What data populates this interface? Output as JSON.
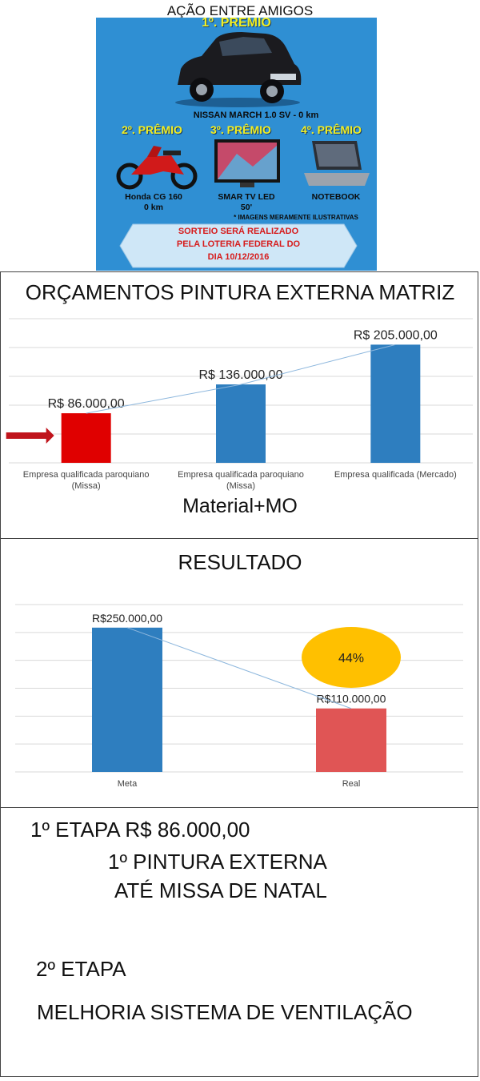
{
  "poster": {
    "title": "AÇÃO ENTRE AMIGOS",
    "first_prize": {
      "label": "1º. PREMIO",
      "item": "NISSAN MARCH 1.0 SV - 0 km"
    },
    "second_prize": {
      "label": "2º. PRÊMIO",
      "item_line1": "Honda CG 160",
      "item_line2": "0 km"
    },
    "third_prize": {
      "label": "3º. PRÊMIO",
      "item_line1": "SMAR TV LED",
      "item_line2": "50'"
    },
    "fourth_prize": {
      "label": "4º. PRÊMIO",
      "item": "NOTEBOOK"
    },
    "disclaimer": "* IMAGENS MERAMENTE ILUSTRATIVAS",
    "draw_line1": "SORTEIO SERÁ REALIZADO",
    "draw_line2": "PELA LOTERIA FEDERAL DO",
    "draw_line3": "DIA 10/12/2016"
  },
  "chart_data": [
    {
      "type": "bar",
      "title": "ORÇAMENTOS PINTURA EXTERNA MATRIZ",
      "subtitle": "Material+MO",
      "categories": [
        [
          "Empresa qualificada paroquiano",
          "(Missa)"
        ],
        [
          "Empresa qualificada paroquiano",
          "(Missa)"
        ],
        [
          "Empresa qualificada  (Mercado)"
        ]
      ],
      "values": [
        86000,
        136000,
        205000
      ],
      "data_labels": [
        "R$ 86.000,00",
        "R$ 136.000,00",
        "R$ 205.000,00"
      ],
      "bar_colors": [
        "#e00000",
        "#2e7ebf",
        "#2e7ebf"
      ],
      "highlight_arrow_color": "#c0141c",
      "ylim": [
        0,
        250000
      ],
      "grid": true,
      "trendline": true
    },
    {
      "type": "bar",
      "title": "RESULTADO",
      "categories": [
        "Meta",
        "Real"
      ],
      "values": [
        250000,
        110000
      ],
      "data_labels": [
        "R$250.000,00",
        "R$110.000,00"
      ],
      "bar_colors": [
        "#2e7ebf",
        "#e05555"
      ],
      "ylim": [
        0,
        290000
      ],
      "grid": true,
      "trendline": true,
      "badge": {
        "text": "44%",
        "color": "#ffc000"
      }
    }
  ],
  "notes": {
    "line1": "1º ETAPA R$ 86.000,00",
    "line2": "1º PINTURA EXTERNA",
    "line3": "ATÉ MISSA DE NATAL",
    "line4": "2º ETAPA",
    "line5": "MELHORIA SISTEMA DE VENTILAÇÃO"
  }
}
